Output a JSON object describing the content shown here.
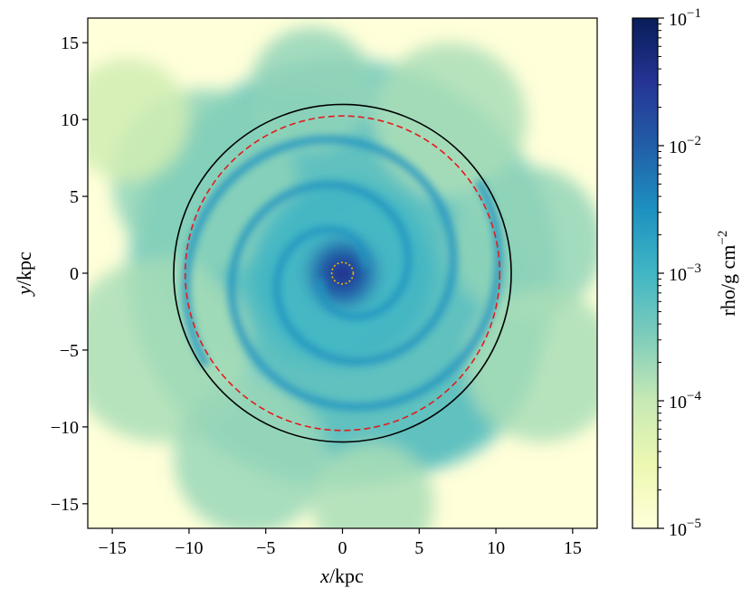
{
  "chart_data": {
    "type": "heatmap",
    "title": "",
    "xlabel": {
      "var": "x",
      "unit": "/kpc"
    },
    "ylabel": {
      "var": "y",
      "unit": "/kpc"
    },
    "xlim": [
      -16.6,
      16.6
    ],
    "ylim": [
      -16.6,
      16.6
    ],
    "x_ticks": [
      -15,
      -10,
      -5,
      0,
      5,
      10,
      15
    ],
    "y_ticks": [
      -15,
      -10,
      -5,
      0,
      5,
      10,
      15
    ],
    "x_tick_labels": [
      "−15",
      "−10",
      "−5",
      "0",
      "5",
      "10",
      "15"
    ],
    "y_tick_labels": [
      "−15",
      "−10",
      "−5",
      "0",
      "5",
      "10",
      "15"
    ],
    "grid": false,
    "colormap": "YlGnBu",
    "colormap_stops": [
      "#ffffd9",
      "#edf8b1",
      "#c7e9b4",
      "#7fcdbb",
      "#41b6c4",
      "#1d91c0",
      "#225ea8",
      "#253494",
      "#081d58"
    ],
    "colorbar": {
      "label_main": "rho/g cm",
      "label_exp": "−2",
      "scale": "log",
      "range": [
        1e-05,
        0.1
      ],
      "tick_values": [
        1e-05,
        0.0001,
        0.001,
        0.01,
        0.1
      ],
      "tick_labels": [
        {
          "base": "10",
          "exp": "−5"
        },
        {
          "base": "10",
          "exp": "−4"
        },
        {
          "base": "10",
          "exp": "−3"
        },
        {
          "base": "10",
          "exp": "−2"
        },
        {
          "base": "10",
          "exp": "−1"
        }
      ]
    },
    "map_description": "Gas surface density projection of a spiral galaxy with dense center and spiral arms",
    "overlays": [
      {
        "name": "outer-circle",
        "shape": "circle",
        "center": [
          0,
          0
        ],
        "radius": 11.0,
        "color": "#000000",
        "linestyle": "solid"
      },
      {
        "name": "dashed-circle",
        "shape": "circle",
        "center": [
          0,
          0
        ],
        "radius": 10.25,
        "color": "#e41a1c",
        "linestyle": "dashed"
      },
      {
        "name": "inner-dotted-circle",
        "shape": "circle",
        "center": [
          0,
          0
        ],
        "radius": 0.7,
        "color": "#f0b400",
        "linestyle": "dotted"
      }
    ]
  }
}
